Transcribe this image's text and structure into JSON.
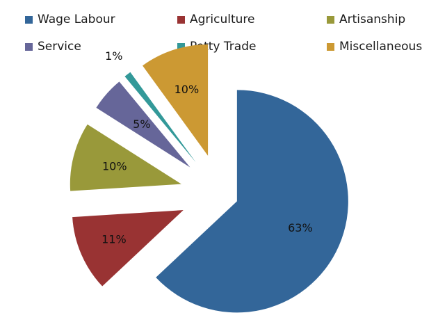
{
  "chart_data": {
    "type": "pie",
    "title": "",
    "legend_position": "top",
    "series": [
      {
        "values": [
          63,
          11,
          10,
          5,
          1,
          10
        ],
        "labels": [
          "63%",
          "11%",
          "10%",
          "5%",
          "1%",
          "10%"
        ]
      }
    ],
    "categories": [
      "Wage Labour",
      "Agriculture",
      "Artisanship",
      "Service",
      "Petty Trade",
      "Miscellaneous"
    ],
    "colors": [
      "#336699",
      "#993333",
      "#99993a",
      "#666699",
      "#339999",
      "#cc9933"
    ],
    "exploded": true
  }
}
